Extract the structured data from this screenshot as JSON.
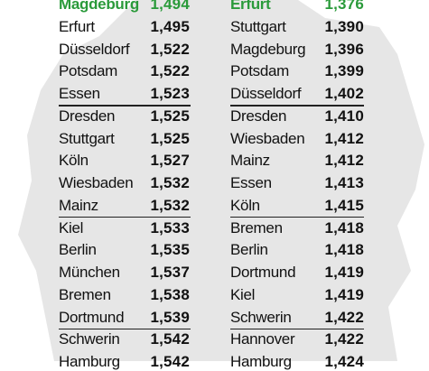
{
  "table": {
    "left": {
      "rows": [
        [
          "Magdeburg",
          "1,494"
        ],
        [
          "Erfurt",
          "1,495"
        ],
        [
          "Düsseldorf",
          "1,522"
        ],
        [
          "Potsdam",
          "1,522"
        ],
        [
          "Essen",
          "1,523"
        ],
        [
          "Dresden",
          "1,525"
        ],
        [
          "Stuttgart",
          "1,525"
        ],
        [
          "Köln",
          "1,527"
        ],
        [
          "Wiesbaden",
          "1,532"
        ],
        [
          "Mainz",
          "1,532"
        ],
        [
          "Kiel",
          "1,533"
        ],
        [
          "Berlin",
          "1,535"
        ],
        [
          "München",
          "1,537"
        ],
        [
          "Bremen",
          "1,538"
        ],
        [
          "Dortmund",
          "1,539"
        ],
        [
          "Schwerin",
          "1,542"
        ],
        [
          "Hamburg",
          "1,542"
        ]
      ]
    },
    "right": {
      "rows": [
        [
          "Erfurt",
          "1,376"
        ],
        [
          "Stuttgart",
          "1,390"
        ],
        [
          "Magdeburg",
          "1,396"
        ],
        [
          "Potsdam",
          "1,399"
        ],
        [
          "Düsseldorf",
          "1,402"
        ],
        [
          "Dresden",
          "1,410"
        ],
        [
          "Wiesbaden",
          "1,412"
        ],
        [
          "Mainz",
          "1,412"
        ],
        [
          "Essen",
          "1,413"
        ],
        [
          "Köln",
          "1,415"
        ],
        [
          "Bremen",
          "1,418"
        ],
        [
          "Berlin",
          "1,418"
        ],
        [
          "Dortmund",
          "1,419"
        ],
        [
          "Kiel",
          "1,419"
        ],
        [
          "Schwerin",
          "1,422"
        ],
        [
          "Hannover",
          "1,422"
        ],
        [
          "Hamburg",
          "1,424"
        ]
      ]
    }
  }
}
